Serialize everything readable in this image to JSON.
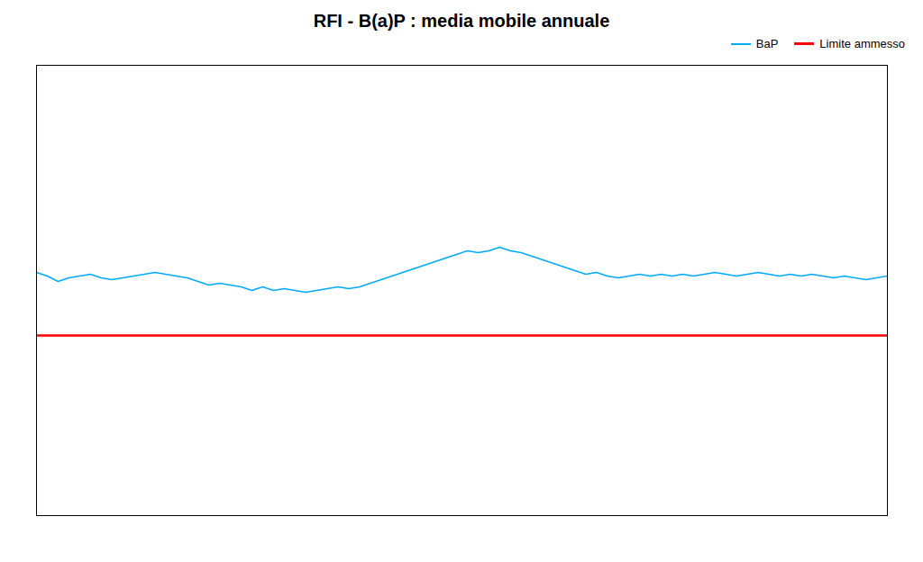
{
  "chart_data": {
    "type": "line",
    "title": "RFI - B(a)P : media mobile annuale",
    "series": [
      {
        "name": "BaP",
        "color": "#00aaff",
        "type": "line",
        "values": [
          1.35,
          1.33,
          1.3,
          1.32,
          1.33,
          1.34,
          1.32,
          1.31,
          1.32,
          1.33,
          1.34,
          1.35,
          1.34,
          1.33,
          1.32,
          1.3,
          1.28,
          1.29,
          1.28,
          1.27,
          1.25,
          1.27,
          1.25,
          1.26,
          1.25,
          1.24,
          1.25,
          1.26,
          1.27,
          1.26,
          1.27,
          1.29,
          1.31,
          1.33,
          1.35,
          1.37,
          1.39,
          1.41,
          1.43,
          1.45,
          1.47,
          1.46,
          1.47,
          1.49,
          1.47,
          1.46,
          1.44,
          1.42,
          1.4,
          1.38,
          1.36,
          1.34,
          1.35,
          1.33,
          1.32,
          1.33,
          1.34,
          1.33,
          1.34,
          1.33,
          1.34,
          1.33,
          1.34,
          1.35,
          1.34,
          1.33,
          1.34,
          1.35,
          1.34,
          1.33,
          1.34,
          1.33,
          1.34,
          1.33,
          1.32,
          1.33,
          1.32,
          1.31,
          1.32,
          1.33
        ]
      },
      {
        "name": "Limite ammesso",
        "color": "#ff0000",
        "type": "rule",
        "values": [
          1.0
        ]
      }
    ],
    "ylim": [
      0.0,
      2.5
    ],
    "tick_labels": false,
    "grid": false,
    "legend": "upper right"
  }
}
